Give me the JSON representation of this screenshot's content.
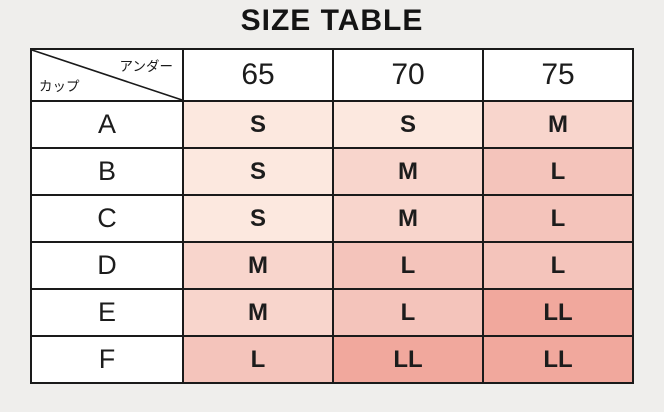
{
  "page_bg": "#efeeec",
  "title": "SIZE TABLE",
  "chart_data": {
    "type": "table",
    "title": "SIZE TABLE",
    "corner": {
      "column_axis_label": "アンダー",
      "row_axis_label": "カップ"
    },
    "columns": [
      "65",
      "70",
      "75"
    ],
    "rows": [
      {
        "cup": "A",
        "values": [
          "S",
          "S",
          "M"
        ]
      },
      {
        "cup": "B",
        "values": [
          "S",
          "M",
          "L"
        ]
      },
      {
        "cup": "C",
        "values": [
          "S",
          "M",
          "L"
        ]
      },
      {
        "cup": "D",
        "values": [
          "M",
          "L",
          "L"
        ]
      },
      {
        "cup": "E",
        "values": [
          "M",
          "L",
          "LL"
        ]
      },
      {
        "cup": "F",
        "values": [
          "L",
          "LL",
          "LL"
        ]
      }
    ],
    "size_colors": {
      "S": "#fce8df",
      "M": "#f8d5cc",
      "L": "#f4c4bb",
      "LL": "#f1a89d"
    },
    "header_bg": "#ffffff",
    "border_color": "#1a1a1a"
  }
}
